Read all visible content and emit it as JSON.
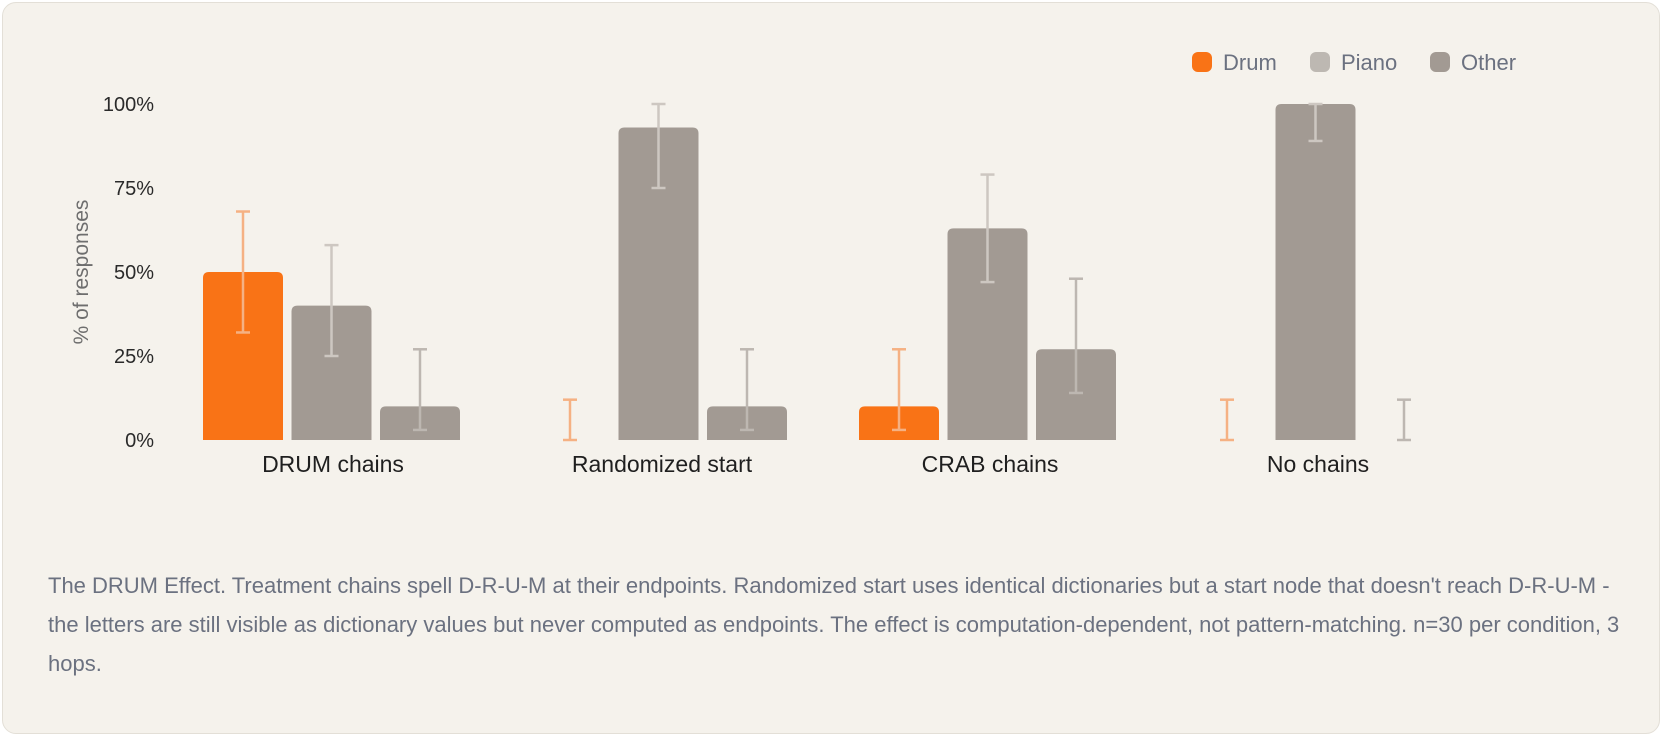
{
  "chart_data": {
    "type": "bar",
    "ylabel": "% of responses",
    "ylim": [
      0,
      100
    ],
    "yticks": [
      "0%",
      "25%",
      "50%",
      "75%",
      "100%"
    ],
    "ytick_values": [
      0,
      25,
      50,
      75,
      100
    ],
    "legend_position": "top-right",
    "categories": [
      "DRUM chains",
      "Randomized start",
      "CRAB chains",
      "No chains"
    ],
    "series": [
      {
        "name": "Drum",
        "color": "#f97316",
        "error_color": "#f5b183",
        "values": [
          50,
          0,
          10,
          0
        ],
        "err_low": [
          32,
          0,
          3,
          0
        ],
        "err_high": [
          68,
          12,
          27,
          12
        ]
      },
      {
        "name": "Piano",
        "color": "#a29a93",
        "error_color": "#cdc7c1",
        "values": [
          40,
          93,
          63,
          100
        ],
        "err_low": [
          25,
          75,
          47,
          89
        ],
        "err_high": [
          58,
          100,
          79,
          100
        ]
      },
      {
        "name": "Other",
        "color": "#a29a93",
        "error_color": "#bdb7b1",
        "values": [
          10,
          10,
          27,
          0
        ],
        "err_low": [
          3,
          3,
          14,
          0
        ],
        "err_high": [
          27,
          27,
          48,
          12
        ]
      }
    ],
    "legend_colors": [
      "#f97316",
      "#bdb8b2",
      "#a29a93"
    ]
  },
  "caption": "The DRUM Effect. Treatment chains spell D-R-U-M at their endpoints. Randomized start uses identical dictionaries but a start node that doesn't reach D-R-U-M - the letters are still visible as dictionary values but never computed as endpoints. The effect is computation-dependent, not pattern-matching. n=30 per condition, 3 hops."
}
